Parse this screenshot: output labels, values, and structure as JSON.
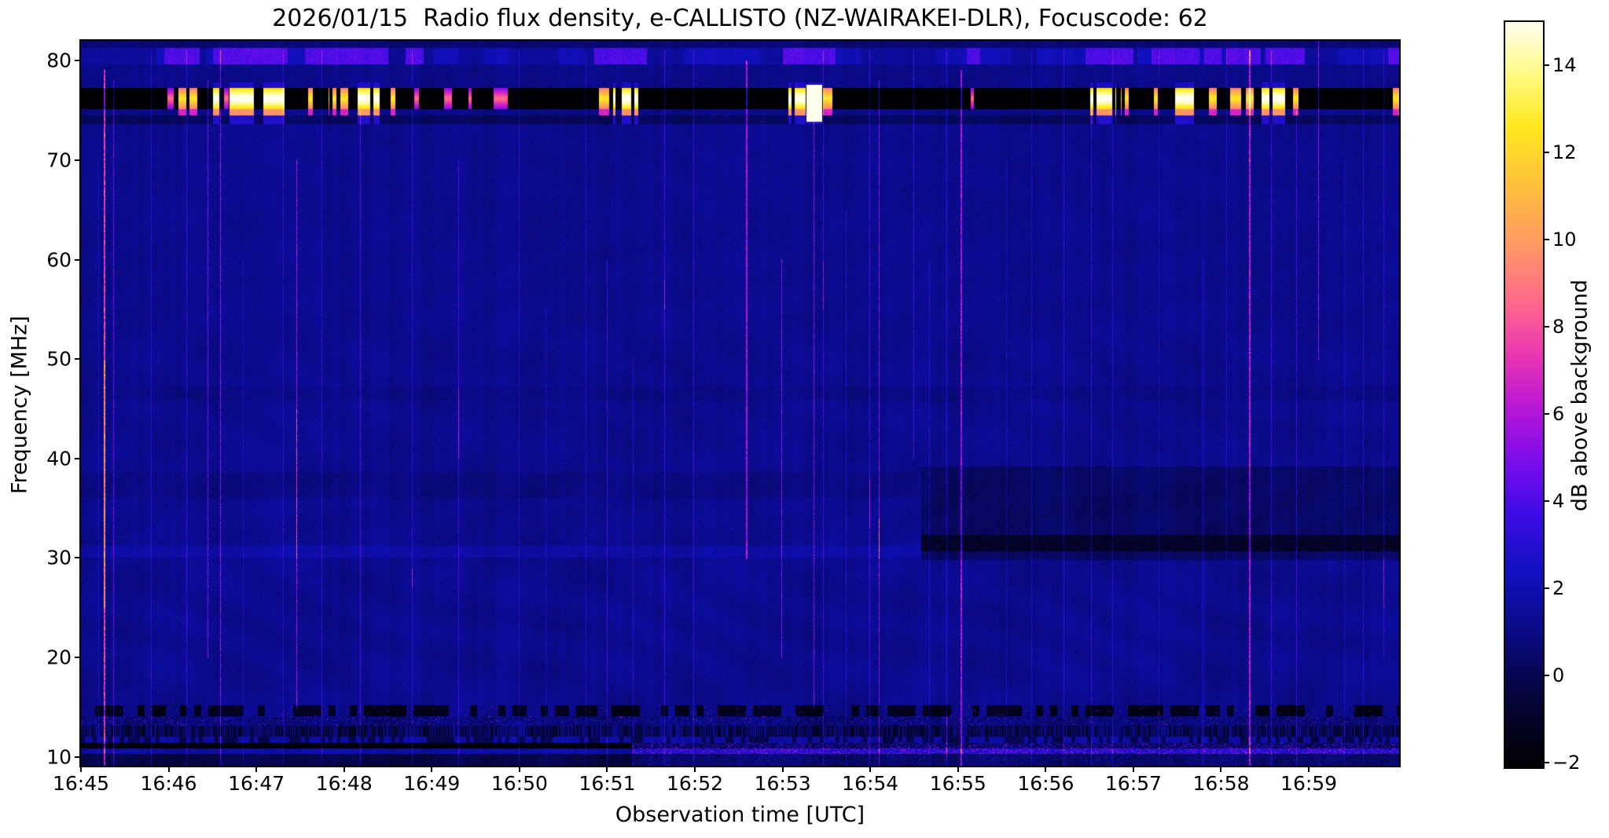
{
  "figure": {
    "title": "2026/01/15  Radio flux density, e-CALLISTO (NZ-WAIRAKEI-DLR), Focuscode: 62",
    "xlabel": "Observation time [UTC]",
    "ylabel": "Frequency [MHz]",
    "colorbar_label": "dB above background"
  },
  "chart_data": {
    "type": "heatmap",
    "subtype": "radio-spectrogram",
    "title": "2026/01/15  Radio flux density, e-CALLISTO (NZ-WAIRAKEI-DLR), Focuscode: 62",
    "station": "NZ-WAIRAKEI-DLR",
    "date": "2026/01/15",
    "focuscode": 62,
    "xlabel": "Observation time [UTC]",
    "ylabel": "Frequency [MHz]",
    "x_tick_labels": [
      "16:45",
      "16:46",
      "16:47",
      "16:48",
      "16:49",
      "16:50",
      "16:51",
      "16:52",
      "16:53",
      "16:54",
      "16:55",
      "16:56",
      "16:57",
      "16:58",
      "16:59"
    ],
    "x_tick_minutes": [
      0,
      1,
      2,
      3,
      4,
      5,
      6,
      7,
      8,
      9,
      10,
      11,
      12,
      13,
      14
    ],
    "xlim_minutes": [
      0,
      15.03
    ],
    "y_tick_values": [
      80,
      70,
      60,
      50,
      40,
      30,
      20,
      10
    ],
    "ylim_mhz": [
      9.1,
      82.0
    ],
    "grid": false,
    "colorbar": {
      "label": "dB above background",
      "tick_labels": [
        "14",
        "12",
        "10",
        "8",
        "6",
        "4",
        "2",
        "0",
        "−2"
      ],
      "tick_values": [
        14,
        12,
        10,
        8,
        6,
        4,
        2,
        0,
        -2
      ],
      "clim": [
        -2.1,
        15.0
      ],
      "position": "right"
    },
    "colormap_stops": [
      [
        0.0,
        0,
        0,
        0
      ],
      [
        0.1,
        5,
        5,
        62
      ],
      [
        0.18,
        10,
        10,
        132
      ],
      [
        0.26,
        16,
        16,
        192
      ],
      [
        0.34,
        62,
        12,
        230
      ],
      [
        0.41,
        122,
        12,
        235
      ],
      [
        0.48,
        182,
        22,
        215
      ],
      [
        0.55,
        232,
        52,
        180
      ],
      [
        0.62,
        255,
        102,
        142
      ],
      [
        0.7,
        255,
        152,
        100
      ],
      [
        0.78,
        255,
        192,
        60
      ],
      [
        0.86,
        255,
        232,
        32
      ],
      [
        0.93,
        255,
        250,
        130
      ],
      [
        1.0,
        255,
        255,
        238
      ]
    ],
    "background_db": 1.25,
    "features": {
      "rfi_black_band_mhz": [
        75.15,
        77.25
      ],
      "upper_blue_band_mhz": [
        79.6,
        81.3
      ],
      "lower_dark_row_mhz": [
        73.6,
        74.5
      ],
      "faint_dark_row_mhz": [
        45.8,
        47.2
      ],
      "left_light_band_mhz": [
        30.0,
        31.2
      ],
      "left_faint_dark_band_mhz": [
        36.0,
        38.6
      ],
      "right_dark_patch": {
        "t_start_min": 9.58,
        "f_mhz": [
          29.8,
          39.2
        ],
        "black_core_mhz": [
          30.7,
          32.3
        ]
      },
      "bottom_black_band": {
        "f_mhz": [
          10.85,
          11.4
        ],
        "t_end_min": 6.28
      },
      "bottom_pink_line": {
        "f_mhz": [
          10.3,
          10.85
        ],
        "t_start_min": 6.28
      },
      "burst_levels_db": {
        "1": 8.5,
        "2": 12.5,
        "3": 15.5,
        "4": 16.0
      },
      "band_bursts": [
        [
          0.98,
          1.05,
          1
        ],
        [
          1.09,
          1.2,
          2
        ],
        [
          1.23,
          1.32,
          2
        ],
        [
          1.5,
          1.57,
          3
        ],
        [
          1.63,
          1.68,
          1
        ],
        [
          1.69,
          2.32,
          3
        ],
        [
          2.59,
          2.64,
          2
        ],
        [
          2.82,
          2.91,
          2
        ],
        [
          2.95,
          3.04,
          2
        ],
        [
          3.15,
          3.42,
          3
        ],
        [
          3.53,
          3.58,
          2
        ],
        [
          3.78,
          3.85,
          1
        ],
        [
          4.14,
          4.23,
          1
        ],
        [
          4.41,
          4.45,
          1
        ],
        [
          4.7,
          4.86,
          1
        ],
        [
          5.9,
          6.05,
          2
        ],
        [
          6.06,
          6.35,
          3
        ],
        [
          8.06,
          8.26,
          3
        ],
        [
          8.27,
          8.45,
          4
        ],
        [
          8.46,
          8.56,
          2
        ],
        [
          10.14,
          10.18,
          1
        ],
        [
          11.49,
          11.8,
          3
        ],
        [
          11.85,
          11.94,
          2
        ],
        [
          12.23,
          12.27,
          2
        ],
        [
          12.47,
          12.7,
          3
        ],
        [
          12.86,
          12.95,
          2
        ],
        [
          13.1,
          13.22,
          2
        ],
        [
          13.28,
          13.37,
          2
        ],
        [
          13.46,
          13.73,
          3
        ],
        [
          13.82,
          13.88,
          2
        ],
        [
          14.95,
          15.03,
          2
        ]
      ],
      "blue_band_segments": [
        [
          0.95,
          1.35
        ],
        [
          1.5,
          2.35
        ],
        [
          2.55,
          3.1
        ],
        [
          3.1,
          3.5
        ],
        [
          3.7,
          3.9
        ],
        [
          5.85,
          6.45
        ],
        [
          8.0,
          8.6
        ],
        [
          10.1,
          10.25
        ],
        [
          11.45,
          12.0
        ],
        [
          12.2,
          12.75
        ],
        [
          12.8,
          13.0
        ],
        [
          13.05,
          13.45
        ],
        [
          13.5,
          13.95
        ],
        [
          14.9,
          15.03
        ]
      ],
      "vertical_lines": [
        {
          "t": 0.2,
          "w": 1,
          "dv": 1.5,
          "f": [
            9.1,
            70
          ]
        },
        {
          "t": 0.26,
          "w": 2,
          "dv": 6.5,
          "f": [
            9.1,
            79
          ],
          "seg": [
            25,
            50,
            2.0
          ]
        },
        {
          "t": 0.37,
          "w": 1,
          "dv": 3.5,
          "f": [
            9.1,
            78
          ]
        },
        {
          "t": 0.8,
          "w": 1,
          "dv": 2.0,
          "f": [
            9.1,
            81
          ]
        },
        {
          "t": 1.2,
          "w": 1,
          "dv": 2.2,
          "f": [
            9.1,
            81
          ]
        },
        {
          "t": 1.44,
          "w": 1,
          "dv": 3.8,
          "f": [
            20,
            78
          ]
        },
        {
          "t": 1.59,
          "w": 1,
          "dv": 4.2,
          "f": [
            9.1,
            81
          ]
        },
        {
          "t": 1.85,
          "w": 1,
          "dv": 1.6,
          "f": [
            9.1,
            60
          ]
        },
        {
          "t": 2.3,
          "w": 1,
          "dv": 2.0,
          "f": [
            9.1,
            81
          ]
        },
        {
          "t": 2.46,
          "w": 1,
          "dv": 4.5,
          "f": [
            15,
            70
          ],
          "seg": [
            30,
            45,
            2.0
          ]
        },
        {
          "t": 2.74,
          "w": 1,
          "dv": 2.2,
          "f": [
            9.1,
            81
          ]
        },
        {
          "t": 3.18,
          "w": 1,
          "dv": 2.8,
          "f": [
            9.1,
            75
          ]
        },
        {
          "t": 3.77,
          "w": 1,
          "dv": 2.0,
          "f": [
            9.1,
            81
          ],
          "seg": [
            27,
            29,
            3.0
          ]
        },
        {
          "t": 4.3,
          "w": 1,
          "dv": 2.4,
          "f": [
            9.1,
            70
          ],
          "seg": [
            40,
            47,
            2.5
          ]
        },
        {
          "t": 4.99,
          "w": 1,
          "dv": 1.8,
          "f": [
            9.1,
            81
          ]
        },
        {
          "t": 5.3,
          "w": 1,
          "dv": 1.5,
          "f": [
            9.1,
            55
          ]
        },
        {
          "t": 5.75,
          "w": 1,
          "dv": 1.8,
          "f": [
            9.1,
            81
          ]
        },
        {
          "t": 6.0,
          "w": 1,
          "dv": 2.6,
          "f": [
            9.1,
            60
          ]
        },
        {
          "t": 6.29,
          "w": 1,
          "dv": 2.0,
          "f": [
            9.1,
            50
          ]
        },
        {
          "t": 6.65,
          "w": 1,
          "dv": 2.4,
          "f": [
            9.1,
            81
          ],
          "seg": [
            55,
            58,
            2.5
          ]
        },
        {
          "t": 6.98,
          "w": 1,
          "dv": 2.2,
          "f": [
            9.1,
            81
          ]
        },
        {
          "t": 7.58,
          "w": 2,
          "dv": 4.5,
          "f": [
            30,
            80
          ]
        },
        {
          "t": 7.99,
          "w": 1,
          "dv": 4.0,
          "f": [
            20,
            60
          ]
        },
        {
          "t": 8.35,
          "w": 1,
          "dv": 4.2,
          "f": [
            15,
            75
          ]
        },
        {
          "t": 8.46,
          "w": 1,
          "dv": 2.5,
          "f": [
            9.1,
            81
          ],
          "seg": [
            55,
            60,
            2.0
          ]
        },
        {
          "t": 8.72,
          "w": 1,
          "dv": 2.0,
          "f": [
            9.1,
            65
          ]
        },
        {
          "t": 8.99,
          "w": 1,
          "dv": 2.3,
          "f": [
            9.1,
            81
          ],
          "seg": [
            33,
            38,
            2.8
          ]
        },
        {
          "t": 9.1,
          "w": 1,
          "dv": 4.0,
          "f": [
            9.1,
            78
          ],
          "seg": [
            30,
            34,
            3.0
          ]
        },
        {
          "t": 9.49,
          "w": 1,
          "dv": 2.6,
          "f": [
            40,
            81
          ]
        },
        {
          "t": 9.67,
          "w": 1,
          "dv": 1.8,
          "f": [
            9.1,
            60
          ]
        },
        {
          "t": 9.87,
          "w": 1,
          "dv": 2.0,
          "f": [
            9.1,
            81
          ],
          "seg": [
            10,
            14,
            2.5
          ]
        },
        {
          "t": 10.03,
          "w": 2,
          "dv": 4.5,
          "f": [
            9.1,
            79
          ]
        },
        {
          "t": 10.55,
          "w": 1,
          "dv": 1.6,
          "f": [
            9.1,
            70
          ]
        },
        {
          "t": 10.84,
          "w": 1,
          "dv": 1.8,
          "f": [
            9.1,
            81
          ]
        },
        {
          "t": 11.2,
          "w": 1,
          "dv": 2.0,
          "f": [
            9.1,
            81
          ]
        },
        {
          "t": 11.52,
          "w": 1,
          "dv": 2.2,
          "f": [
            9.1,
            75
          ]
        },
        {
          "t": 11.76,
          "w": 1,
          "dv": 1.8,
          "f": [
            9.1,
            81
          ]
        },
        {
          "t": 12.29,
          "w": 1,
          "dv": 1.8,
          "f": [
            9.1,
            81
          ]
        },
        {
          "t": 12.79,
          "w": 1,
          "dv": 1.6,
          "f": [
            9.1,
            60
          ]
        },
        {
          "t": 13.06,
          "w": 1,
          "dv": 1.8,
          "f": [
            30,
            81
          ]
        },
        {
          "t": 13.32,
          "w": 2,
          "dv": 5.0,
          "f": [
            9.1,
            81
          ]
        },
        {
          "t": 13.57,
          "w": 1,
          "dv": 2.4,
          "f": [
            9.1,
            81
          ]
        },
        {
          "t": 13.86,
          "w": 1,
          "dv": 2.6,
          "f": [
            9.1,
            75
          ]
        },
        {
          "t": 14.11,
          "w": 1,
          "dv": 4.2,
          "f": [
            50,
            82
          ],
          "seg": [
            10,
            11,
            2.5
          ]
        },
        {
          "t": 14.4,
          "w": 1,
          "dv": 1.6,
          "f": [
            9.1,
            70
          ]
        },
        {
          "t": 14.62,
          "w": 1,
          "dv": 2.0,
          "f": [
            9.1,
            81
          ]
        },
        {
          "t": 14.85,
          "w": 1,
          "dv": 2.2,
          "f": [
            20,
            81
          ],
          "seg": [
            25,
            30,
            2.0
          ]
        }
      ]
    }
  }
}
